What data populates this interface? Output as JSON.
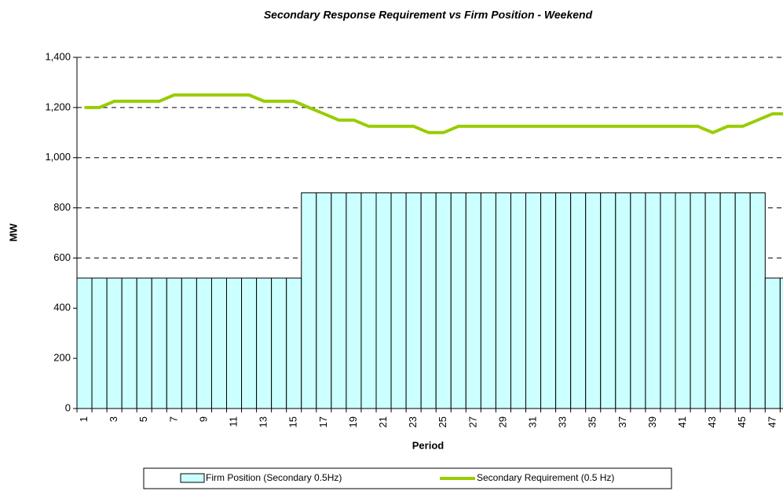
{
  "chart_data": {
    "type": "bar_line",
    "title": "Secondary Response Requirement vs Firm Position - Weekend",
    "x_label": "Period",
    "y_label": "MW",
    "categories": [
      1,
      null,
      3,
      null,
      5,
      null,
      7,
      null,
      9,
      null,
      11,
      null,
      13,
      null,
      15,
      null,
      17,
      null,
      19,
      null,
      21,
      null,
      23,
      null,
      25,
      null,
      27,
      null,
      29,
      null,
      31,
      null,
      33,
      null,
      35,
      null,
      37,
      null,
      39,
      null,
      41,
      null,
      43,
      null,
      45,
      null,
      47,
      null
    ],
    "ylim": [
      0,
      1400
    ],
    "yticks": [
      0,
      200,
      400,
      600,
      800,
      {
        "value": 1000,
        "label": "1,000"
      },
      {
        "value": 1200,
        "label": "1,200"
      },
      {
        "value": 1400,
        "label": "1,400"
      }
    ],
    "grid": true,
    "legend": "bottom",
    "series": [
      {
        "name": "Firm Position (Secondary 0.5Hz)",
        "type": "bar",
        "color": "#ccffff",
        "values": [
          520,
          520,
          520,
          520,
          520,
          520,
          520,
          520,
          520,
          520,
          520,
          520,
          520,
          520,
          520,
          860,
          860,
          860,
          860,
          860,
          860,
          860,
          860,
          860,
          860,
          860,
          860,
          860,
          860,
          860,
          860,
          860,
          860,
          860,
          860,
          860,
          860,
          860,
          860,
          860,
          860,
          860,
          860,
          860,
          860,
          860,
          520,
          520
        ]
      },
      {
        "name": "Secondary Requirement (0.5 Hz)",
        "type": "line",
        "color": "#99cc00",
        "values": [
          1200,
          1200,
          1225,
          1225,
          1225,
          1225,
          1250,
          1250,
          1250,
          1250,
          1250,
          1250,
          1225,
          1225,
          1225,
          1200,
          1175,
          1150,
          1150,
          1125,
          1125,
          1125,
          1125,
          1100,
          1100,
          1125,
          1125,
          1125,
          1125,
          1125,
          1125,
          1125,
          1125,
          1125,
          1125,
          1125,
          1125,
          1125,
          1125,
          1125,
          1125,
          1125,
          1100,
          1125,
          1125,
          1150,
          1175,
          1175
        ]
      }
    ]
  }
}
